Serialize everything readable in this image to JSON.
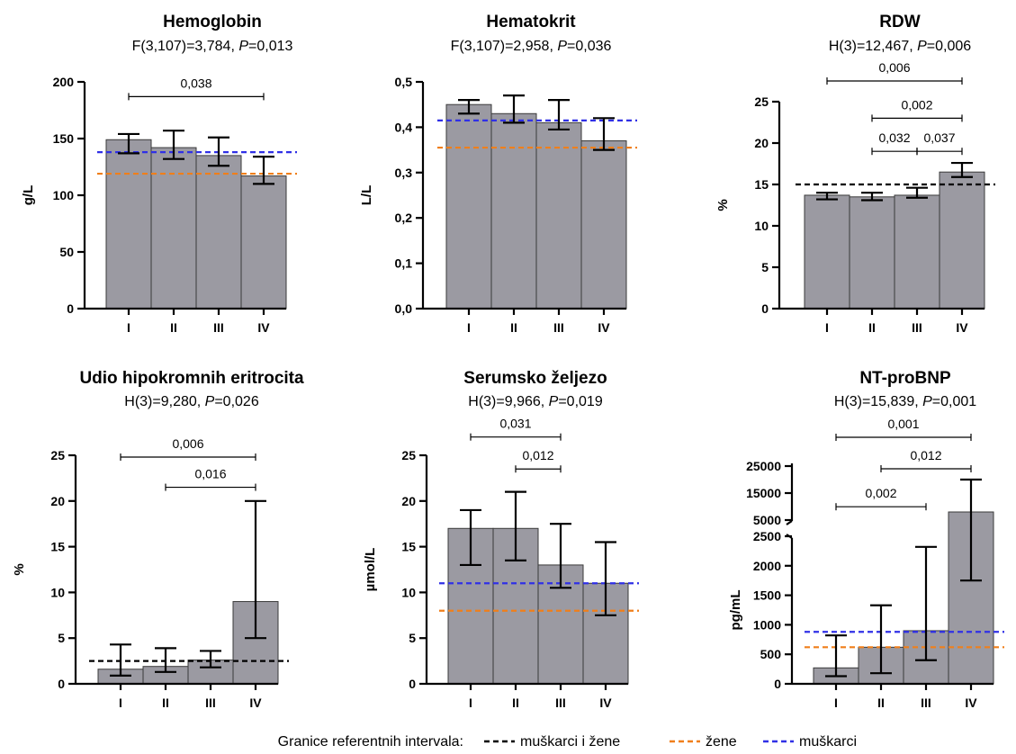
{
  "colors": {
    "bar": "#9b9aa2",
    "bar_edge": "#3a3a3a",
    "both": "#000000",
    "women": "#f07f1a",
    "men": "#3030e6"
  },
  "legend": {
    "prefix": "Granice referentnih intervala:",
    "items": [
      {
        "key": "both",
        "label": "muškarci i žene"
      },
      {
        "key": "women",
        "label": "žene"
      },
      {
        "key": "men",
        "label": "muškarci"
      }
    ]
  },
  "chart_data": [
    {
      "type": "bar",
      "title": "Hemoglobin",
      "subtitle": {
        "pre": "F(3,107)=3,784, ",
        "italic": "P",
        "post": "=0,013"
      },
      "ylabel": "g/L",
      "ylim": [
        0,
        200
      ],
      "ticks": [
        0,
        50,
        100,
        150,
        200
      ],
      "tick_labels": [
        "0",
        "50",
        "100",
        "150",
        "200"
      ],
      "categories": [
        "I",
        "II",
        "III",
        "IV"
      ],
      "values": [
        149,
        142,
        135,
        117
      ],
      "err_low": [
        137,
        132,
        126,
        110
      ],
      "err_high": [
        154,
        157,
        151,
        134
      ],
      "ref_lines": [
        {
          "key": "men",
          "value": 138
        },
        {
          "key": "women",
          "value": 119
        }
      ],
      "brackets": [
        {
          "from": 0,
          "to": 3,
          "label": "0,038",
          "y": 187
        }
      ]
    },
    {
      "type": "bar",
      "title": "Hematokrit",
      "subtitle": {
        "pre": "F(3,107)=2,958, ",
        "italic": "P",
        "post": "=0,036"
      },
      "ylabel": "L/L",
      "ylim": [
        0,
        0.5
      ],
      "ticks": [
        0,
        0.1,
        0.2,
        0.3,
        0.4,
        0.5
      ],
      "tick_labels": [
        "0,0",
        "0,1",
        "0,2",
        "0,3",
        "0,4",
        "0,5"
      ],
      "categories": [
        "I",
        "II",
        "III",
        "IV"
      ],
      "values": [
        0.45,
        0.43,
        0.41,
        0.37
      ],
      "err_low": [
        0.43,
        0.41,
        0.395,
        0.35
      ],
      "err_high": [
        0.46,
        0.47,
        0.46,
        0.42
      ],
      "ref_lines": [
        {
          "key": "men",
          "value": 0.415
        },
        {
          "key": "women",
          "value": 0.355
        }
      ],
      "brackets": []
    },
    {
      "type": "bar",
      "title": "RDW",
      "subtitle": {
        "pre": "H(3)=12,467, ",
        "italic": "P",
        "post": "=0,006"
      },
      "ylabel": "%",
      "ylim": [
        0,
        25
      ],
      "ticks": [
        0,
        5,
        10,
        15,
        20,
        25
      ],
      "tick_labels": [
        "0",
        "5",
        "10",
        "15",
        "20",
        "25"
      ],
      "categories": [
        "I",
        "II",
        "III",
        "IV"
      ],
      "values": [
        13.7,
        13.5,
        13.7,
        16.5
      ],
      "err_low": [
        13.2,
        13.1,
        13.4,
        15.9
      ],
      "err_high": [
        14.0,
        14.0,
        14.6,
        17.6
      ],
      "ref_lines": [
        {
          "key": "both",
          "value": 15
        }
      ],
      "brackets": [
        {
          "from": 0,
          "to": 3,
          "label": "0,006",
          "y": 27.5
        },
        {
          "from": 1,
          "to": 3,
          "label": "0,002",
          "y": 23
        },
        {
          "from": 1,
          "to": 2,
          "label": "0,032",
          "y": 19
        },
        {
          "from": 2,
          "to": 3,
          "label": "0,037",
          "y": 19
        }
      ]
    },
    {
      "type": "bar",
      "title": "Udio hipokromnih eritrocita",
      "subtitle": {
        "pre": "H(3)=9,280, ",
        "italic": "P",
        "post": "=0,026"
      },
      "ylabel": "%",
      "ylim": [
        0,
        25
      ],
      "ticks": [
        0,
        5,
        10,
        15,
        20,
        25
      ],
      "tick_labels": [
        "0",
        "5",
        "10",
        "15",
        "20",
        "25"
      ],
      "categories": [
        "I",
        "II",
        "III",
        "IV"
      ],
      "values": [
        1.6,
        1.9,
        2.6,
        9.0
      ],
      "err_low": [
        0.9,
        1.3,
        1.8,
        5.0
      ],
      "err_high": [
        4.3,
        3.9,
        3.6,
        20.0
      ],
      "ref_lines": [
        {
          "key": "both",
          "value": 2.5
        }
      ],
      "brackets": [
        {
          "from": 0,
          "to": 3,
          "label": "0,006",
          "y": 24.8
        },
        {
          "from": 1,
          "to": 3,
          "label": "0,016",
          "y": 21.5
        }
      ]
    },
    {
      "type": "bar",
      "title": "Serumsko željezo",
      "subtitle": {
        "pre": "H(3)=9,966, ",
        "italic": "P",
        "post": "=0,019"
      },
      "ylabel": "µmol/L",
      "ylim": [
        0,
        25
      ],
      "ticks": [
        0,
        5,
        10,
        15,
        20,
        25
      ],
      "tick_labels": [
        "0",
        "5",
        "10",
        "15",
        "20",
        "25"
      ],
      "categories": [
        "I",
        "II",
        "III",
        "IV"
      ],
      "values": [
        17,
        17,
        13,
        11
      ],
      "err_low": [
        13,
        13.5,
        10.5,
        7.5
      ],
      "err_high": [
        19,
        21,
        17.5,
        15.5
      ],
      "ref_lines": [
        {
          "key": "men",
          "value": 11
        },
        {
          "key": "women",
          "value": 8
        }
      ],
      "brackets": [
        {
          "from": 0,
          "to": 2,
          "label": "0,031",
          "y": 27
        },
        {
          "from": 1,
          "to": 2,
          "label": "0,012",
          "y": 23.5
        }
      ]
    },
    {
      "type": "bar",
      "title": "NT-proBNP",
      "subtitle": {
        "pre": "H(3)=15,839, ",
        "italic": "P",
        "post": "=0,001"
      },
      "ylabel": "pg/mL",
      "axis_break": true,
      "ylim": [
        0,
        2500
      ],
      "ylim_upper": [
        5000,
        25000
      ],
      "ticks": [
        0,
        500,
        1000,
        1500,
        2000,
        2500
      ],
      "tick_labels": [
        "0",
        "500",
        "1000",
        "1500",
        "2000",
        "2500"
      ],
      "ticks_upper": [
        5000,
        15000,
        25000
      ],
      "tick_labels_upper": [
        "5000",
        "15000",
        "25000"
      ],
      "categories": [
        "I",
        "II",
        "III",
        "IV"
      ],
      "values": [
        270,
        620,
        900,
        8000
      ],
      "err_low": [
        130,
        180,
        400,
        1750
      ],
      "err_high": [
        820,
        1330,
        2320,
        20000
      ],
      "ref_lines": [
        {
          "key": "men",
          "value": 880
        },
        {
          "key": "women",
          "value": 620
        }
      ],
      "brackets": [
        {
          "from": 0,
          "to": 3,
          "label": "0,001",
          "y": 38000
        },
        {
          "from": 1,
          "to": 3,
          "label": "0,012",
          "y": 28000
        },
        {
          "from": 0,
          "to": 2,
          "label": "0,002",
          "y": 3000
        }
      ]
    }
  ]
}
